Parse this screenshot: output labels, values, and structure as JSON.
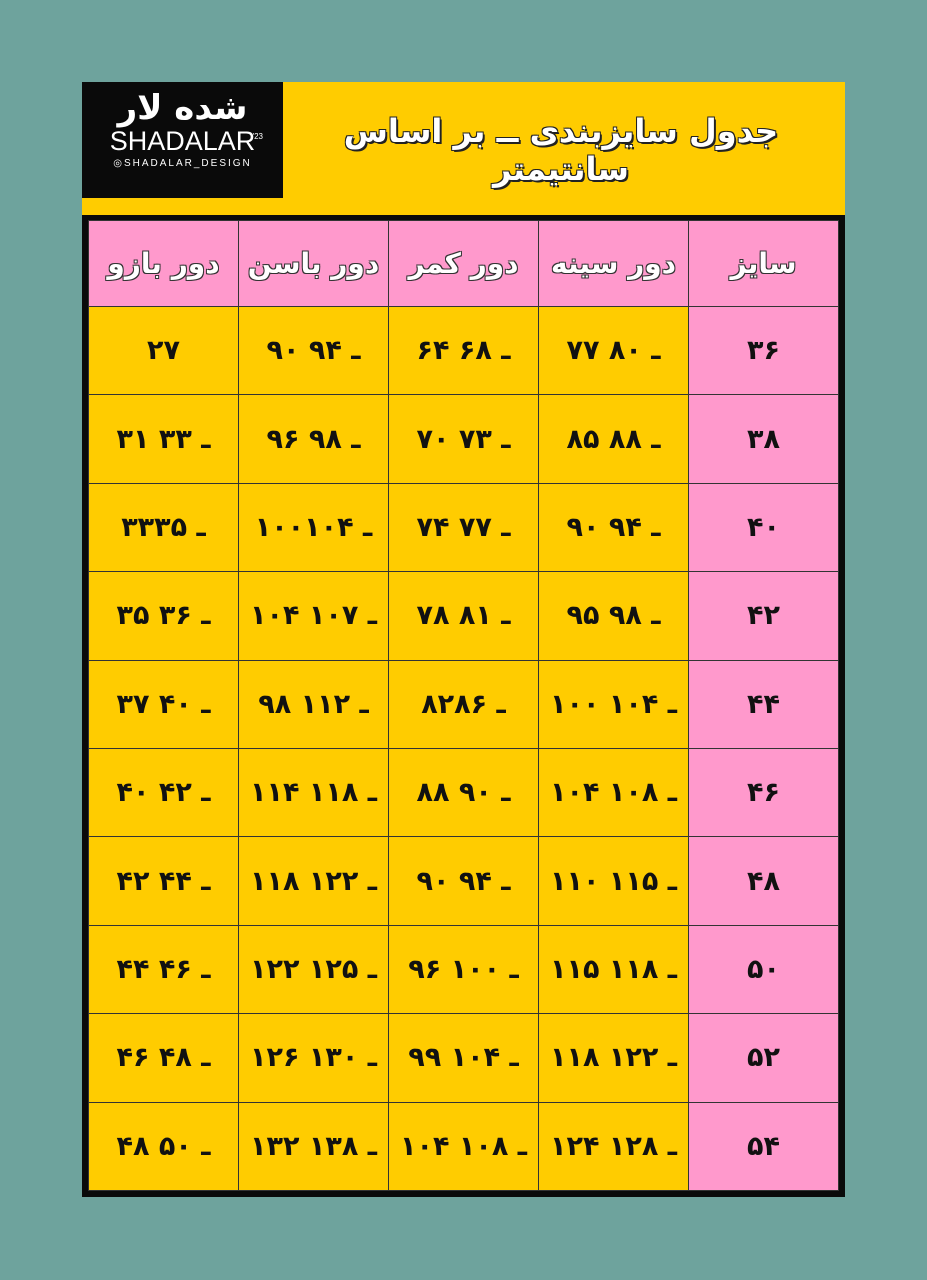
{
  "logo": {
    "persian": "شده لار",
    "brand": "SHADALAR",
    "year": "'23",
    "instagram": "SHADALAR_DESIGN"
  },
  "title": "جدول سایزبندی ــ بر اساس سانتیمتر",
  "colors": {
    "background": "#6ea39d",
    "yellow": "#ffcc00",
    "pink": "#ff99cc",
    "black": "#0a0a0a"
  },
  "table": {
    "headers": [
      "سایز",
      "دور سینه",
      "دور کمر",
      "دور باسن",
      "دور بازو"
    ],
    "rows": [
      [
        "۳۶",
        "۷۷ ـ ۸۰",
        "۶۴ ـ ۶۸",
        "۹۰ ـ ۹۴",
        "۲۷"
      ],
      [
        "۳۸",
        "۸۵ ـ ۸۸",
        "۷۰ ـ ۷۳",
        "۹۶ ـ ۹۸",
        "۳۱ ـ ۳۳"
      ],
      [
        "۴۰",
        "۹۰ ـ ۹۴",
        "۷۴ ـ ۷۷",
        "۱۰۰ـ ۱۰۴",
        "۳۳ـ ۳۵"
      ],
      [
        "۴۲",
        "۹۵ ـ ۹۸",
        "۷۸ ـ ۸۱",
        "۱۰۴ ـ ۱۰۷",
        "۳۵ ـ ۳۶"
      ],
      [
        "۴۴",
        "۱۰۰ ـ ۱۰۴",
        "۸۲ـ ۸۶",
        "۹۸ ـ ۱۱۲",
        "۳۷ ـ ۴۰"
      ],
      [
        "۴۶",
        "۱۰۴ ـ ۱۰۸",
        "۸۸ ـ ۹۰",
        "۱۱۴ ـ ۱۱۸",
        "۴۰ ـ ۴۲"
      ],
      [
        "۴۸",
        "۱۱۰ ـ ۱۱۵",
        "۹۰ ـ ۹۴",
        "۱۱۸ ـ ۱۲۲",
        "۴۲ ـ ۴۴"
      ],
      [
        "۵۰",
        "۱۱۵ ـ ۱۱۸",
        "۹۶ ـ ۱۰۰",
        "۱۲۲ ـ ۱۲۵",
        "۴۴ ـ ۴۶"
      ],
      [
        "۵۲",
        "۱۱۸ ـ ۱۲۲",
        "۹۹ ـ ۱۰۴",
        "۱۲۶ ـ ۱۳۰",
        "۴۶ ـ ۴۸"
      ],
      [
        "۵۴",
        "۱۲۴ ـ ۱۲۸",
        "۱۰۴ ـ ۱۰۸",
        "۱۳۲ ـ ۱۳۸",
        "۴۸ ـ ۵۰"
      ]
    ]
  }
}
